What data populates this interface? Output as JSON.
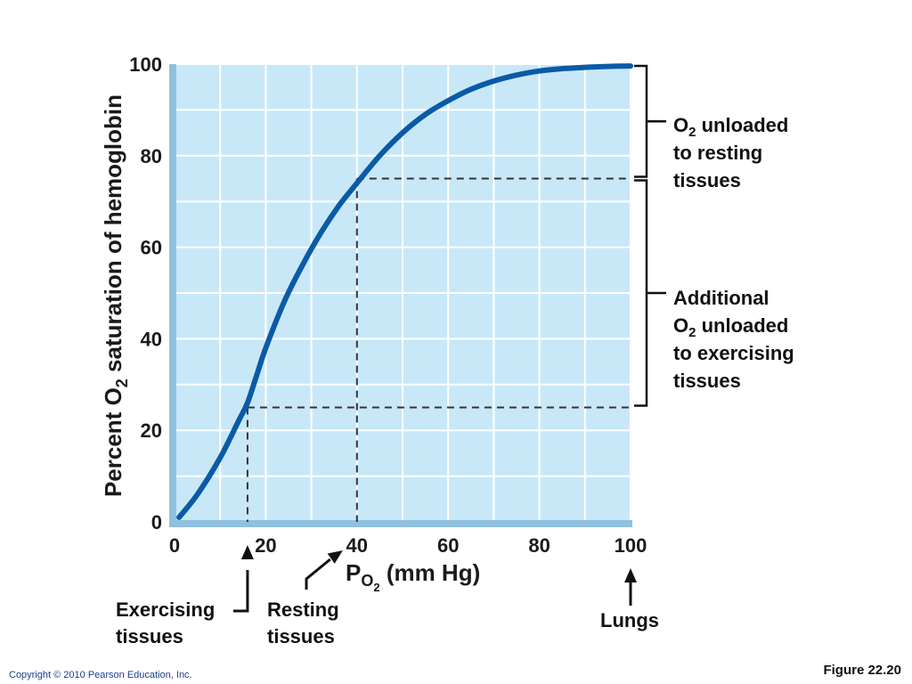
{
  "chart_data": {
    "type": "line",
    "title": "",
    "xlabel": {
      "main": "P",
      "sub": "O",
      "subsub": "2",
      "unit": " (mm Hg)"
    },
    "ylabel": {
      "before": "Percent O",
      "sub": "2",
      "after": " saturation of hemoglobin"
    },
    "xlim": [
      0,
      100
    ],
    "ylim": [
      0,
      100
    ],
    "x_ticks": [
      "0",
      "20",
      "40",
      "60",
      "80",
      "100"
    ],
    "y_ticks": [
      "0",
      "20",
      "40",
      "60",
      "80",
      "100"
    ],
    "grid": true,
    "grid_step": 10,
    "series": [
      {
        "color": "#0a5aa6",
        "x": [
          1,
          5,
          10,
          14,
          16,
          18,
          20,
          24,
          28,
          32,
          36,
          40,
          45,
          50,
          55,
          60,
          65,
          70,
          75,
          80,
          85,
          90,
          95,
          100
        ],
        "y": [
          1,
          6,
          14,
          22,
          26,
          32,
          38,
          48,
          56,
          63,
          69,
          74,
          80,
          85,
          89,
          92,
          94.5,
          96.3,
          97.6,
          98.5,
          99,
          99.3,
          99.5,
          99.6
        ]
      }
    ],
    "reference_lines": [
      {
        "x": 16,
        "y": 25
      },
      {
        "x": 40,
        "y": 75
      }
    ],
    "brackets": [
      {
        "y_from": 75,
        "y_to": 100,
        "label": [
          {
            "t": "O",
            "sub": "2",
            "rest": " unloaded"
          },
          {
            "t": "to resting"
          },
          {
            "t": "tissues"
          }
        ]
      },
      {
        "y_from": 25,
        "y_to": 75,
        "label": [
          {
            "t": "Additional"
          },
          {
            "t": "O",
            "sub": "2",
            "rest": " unloaded"
          },
          {
            "t": "to exercising"
          },
          {
            "t": "tissues"
          }
        ]
      }
    ],
    "pointers": [
      {
        "x": 16,
        "style": "straight-elbow",
        "label": [
          "Exercising",
          "tissues"
        ]
      },
      {
        "x": 40,
        "style": "diagonal-elbow",
        "label": [
          "Resting",
          "tissues"
        ]
      },
      {
        "x": 100,
        "style": "straight",
        "label": [
          "Lungs"
        ]
      }
    ],
    "colors": {
      "plot_bg": "#c8e8f8",
      "grid": "#ffffff",
      "axis_shadow": "#8fc0e0",
      "curve": "#0a5aa6",
      "reference": "#333333"
    }
  },
  "footer": {
    "copyright": "Copyright © 2010 Pearson Education, Inc.",
    "figure_label": "Figure 22.20"
  }
}
